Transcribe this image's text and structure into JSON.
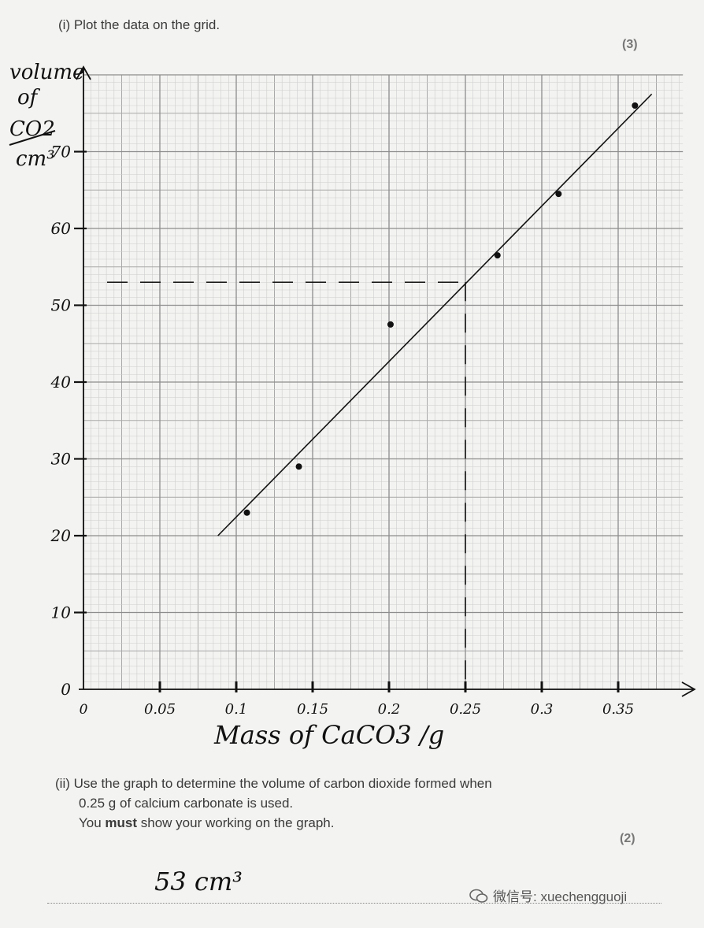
{
  "question": {
    "part_i": "(i)  Plot the data on the grid.",
    "part_i_marks": "(3)",
    "part_ii_line1": "(ii)  Use the graph to determine the volume of carbon dioxide formed when",
    "part_ii_line2": "0.25 g of calcium carbonate is used.",
    "part_ii_line3_pre": "You ",
    "part_ii_line3_bold": "must",
    "part_ii_line3_post": " show your working on the graph.",
    "part_ii_marks": "(2)",
    "answer": "53  cm³"
  },
  "watermark": {
    "icon": "wechat-icon",
    "text": "微信号: xuechengguoji"
  },
  "chart_data": {
    "type": "scatter",
    "xlabel": "Mass of CaCO3 /g",
    "ylabel_lines": [
      "volume",
      "of",
      "CO2",
      "cm³"
    ],
    "x_tick_labels": [
      "0",
      "0.05",
      "0.1",
      "0.15",
      "0.2",
      "0.25",
      "0.3",
      "0.35"
    ],
    "x_ticks": [
      0,
      0.05,
      0.1,
      0.15,
      0.2,
      0.25,
      0.3,
      0.35
    ],
    "y_ticks": [
      0,
      10,
      20,
      30,
      40,
      50,
      60,
      70
    ],
    "y_tick_labels": [
      "0",
      "10",
      "20",
      "30",
      "40",
      "50",
      "60",
      "70"
    ],
    "xlim": [
      0,
      0.38
    ],
    "ylim": [
      0,
      80
    ],
    "grid": true,
    "points": [
      {
        "x": 0.107,
        "y": 23
      },
      {
        "x": 0.141,
        "y": 29
      },
      {
        "x": 0.201,
        "y": 47.5
      },
      {
        "x": 0.271,
        "y": 56.5
      },
      {
        "x": 0.311,
        "y": 64.5
      },
      {
        "x": 0.361,
        "y": 76
      }
    ],
    "best_fit_line": [
      {
        "x": 0.088,
        "y": 20
      },
      {
        "x": 0.372,
        "y": 77.5
      }
    ],
    "reading": {
      "x": 0.25,
      "y": 53
    }
  }
}
